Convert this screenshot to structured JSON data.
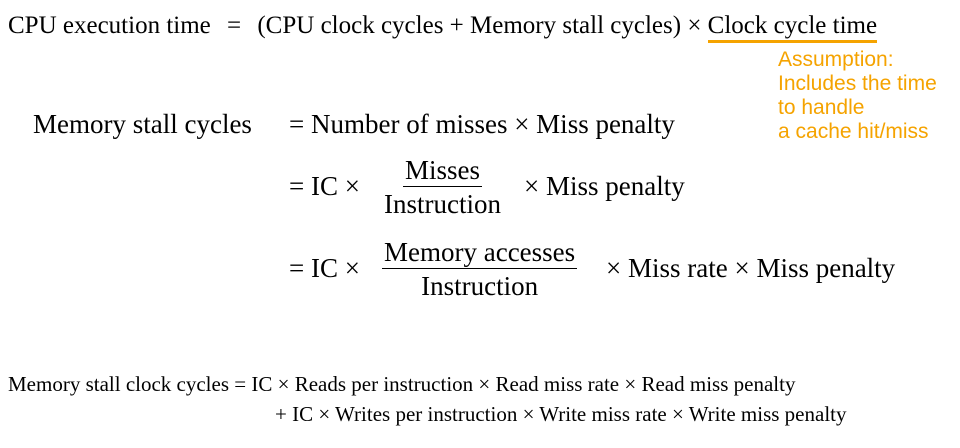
{
  "eq1": {
    "lhs": "CPU execution time",
    "eq": "=",
    "rhs": "(CPU clock cycles + Memory stall cycles) ×",
    "underlined": "Clock cycle time"
  },
  "note": {
    "line1": "Assumption:",
    "line2": "Includes the time",
    "line3": "to handle",
    "line4": "a cache hit/miss"
  },
  "eq2": {
    "lhs": "Memory stall cycles",
    "row1": "= Number of misses × Miss penalty",
    "row2_prefix": "= IC ×",
    "row2_num": "Misses",
    "row2_den": "Instruction",
    "row2_suffix": "× Miss penalty",
    "row3_prefix": "= IC ×",
    "row3_num": "Memory accesses",
    "row3_den": "Instruction",
    "row3_suffix": "× Miss rate × Miss penalty"
  },
  "eq3": {
    "line1": "Memory stall clock cycles = IC × Reads per instruction × Read miss rate × Read miss penalty",
    "line2": "+ IC × Writes per instruction × Write miss rate × Write miss penalty"
  },
  "colors": {
    "accent": "#f5a300",
    "text": "#000000",
    "background": "#ffffff"
  }
}
